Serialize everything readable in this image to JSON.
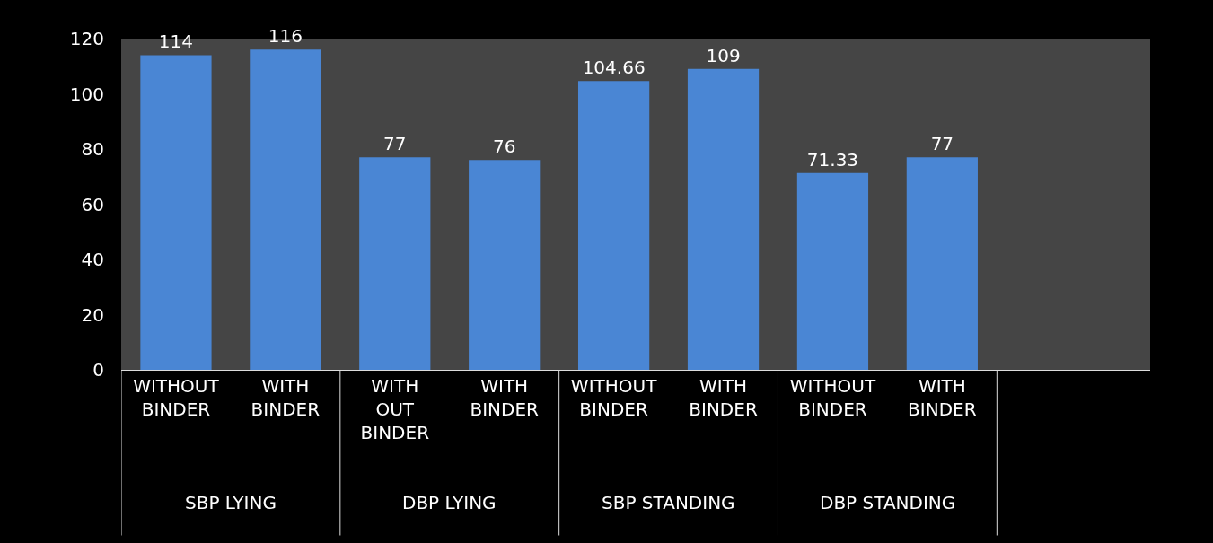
{
  "chart_data": {
    "type": "bar",
    "categories": [
      "WITHOUT BINDER",
      "WITH BINDER",
      "WITH OUT BINDER",
      "WITH BINDER",
      "WITHOUT BINDER",
      "WITH BINDER",
      "WITHOUT BINDER",
      "WITH BINDER"
    ],
    "values": [
      114,
      116,
      77,
      76,
      104.66,
      109,
      71.33,
      77
    ],
    "color": "#4a86d4",
    "data_labels": true,
    "ylim": [
      0,
      120
    ],
    "yticks": [
      0,
      20,
      40,
      60,
      80,
      100,
      120
    ],
    "annotations": [
      "SBP LYING",
      "DBP LYING",
      "SBP STANDING",
      "DBP STANDING"
    ]
  }
}
